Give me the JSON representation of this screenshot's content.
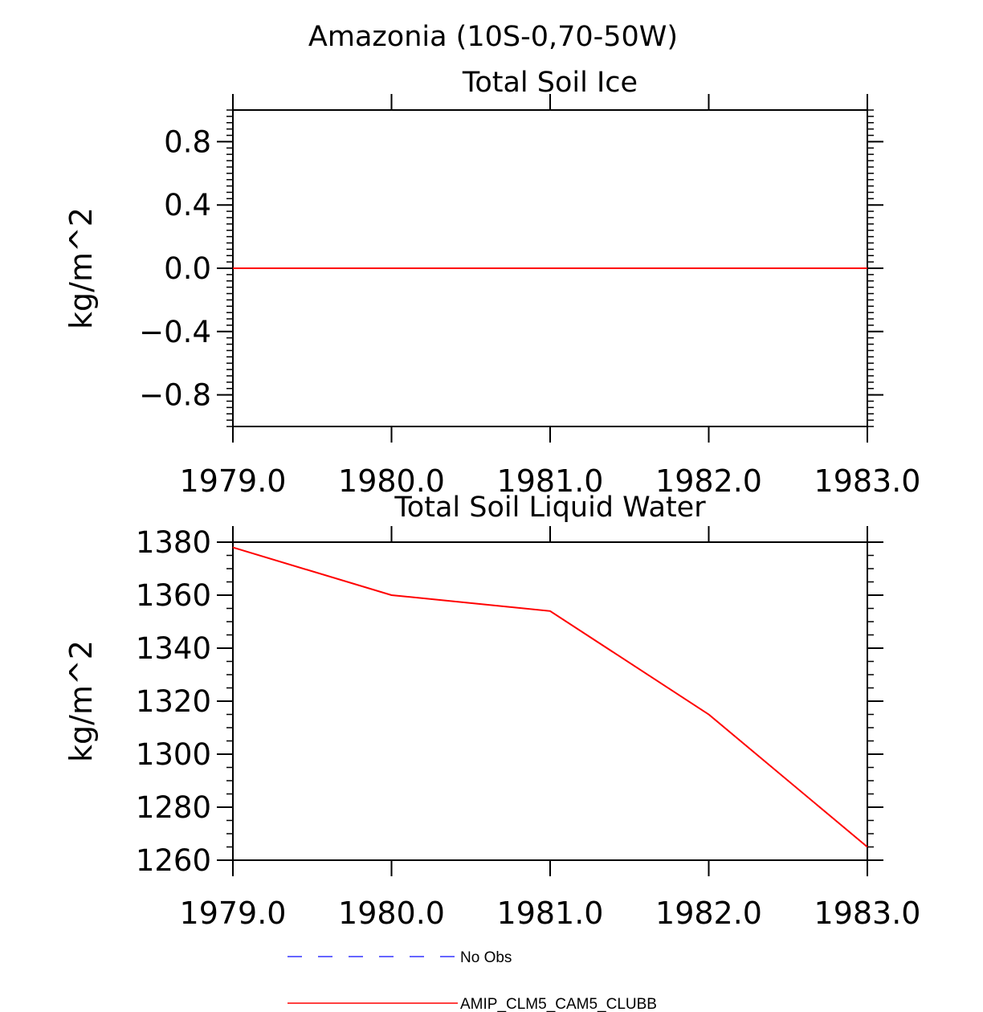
{
  "figure": {
    "title": "Amazonia (10S-0,70-50W)"
  },
  "legend": {
    "items": [
      {
        "label": "No Obs",
        "color": "#3333ff",
        "style": "dashed"
      },
      {
        "label": "AMIP_CLM5_CAM5_CLUBB",
        "color": "#ff0000",
        "style": "solid"
      }
    ]
  },
  "chart_data": [
    {
      "type": "line",
      "title": "Total Soil Ice",
      "ylabel": "kg/m^2",
      "xlabel": "",
      "xlim": [
        1979.0,
        1983.0
      ],
      "ylim": [
        -1.0,
        1.0
      ],
      "x_ticks": [
        1979.0,
        1980.0,
        1981.0,
        1982.0,
        1983.0
      ],
      "x_tick_labels": [
        "1979.0",
        "1980.0",
        "1981.0",
        "1982.0",
        "1983.0"
      ],
      "y_ticks": [
        -0.8,
        -0.4,
        0.0,
        0.4,
        0.8
      ],
      "y_tick_labels": [
        "−0.8",
        "−0.4",
        "0.0",
        "0.4",
        "0.8"
      ],
      "series": [
        {
          "name": "AMIP_CLM5_CAM5_CLUBB",
          "color": "#ff0000",
          "x": [
            1979.0,
            1980.0,
            1981.0,
            1982.0,
            1983.0
          ],
          "values": [
            0.0,
            0.0,
            0.0,
            0.0,
            0.0
          ]
        }
      ]
    },
    {
      "type": "line",
      "title": "Total Soil Liquid Water",
      "ylabel": "kg/m^2",
      "xlabel": "",
      "xlim": [
        1979.0,
        1983.0
      ],
      "ylim": [
        1260,
        1380
      ],
      "x_ticks": [
        1979.0,
        1980.0,
        1981.0,
        1982.0,
        1983.0
      ],
      "x_tick_labels": [
        "1979.0",
        "1980.0",
        "1981.0",
        "1982.0",
        "1983.0"
      ],
      "y_ticks": [
        1260,
        1280,
        1300,
        1320,
        1340,
        1360,
        1380
      ],
      "y_tick_labels": [
        "1260",
        "1280",
        "1300",
        "1320",
        "1340",
        "1360",
        "1380"
      ],
      "series": [
        {
          "name": "AMIP_CLM5_CAM5_CLUBB",
          "color": "#ff0000",
          "x": [
            1979.0,
            1980.0,
            1981.0,
            1982.0,
            1983.0
          ],
          "values": [
            1378,
            1360,
            1354,
            1315,
            1265
          ]
        }
      ]
    }
  ]
}
